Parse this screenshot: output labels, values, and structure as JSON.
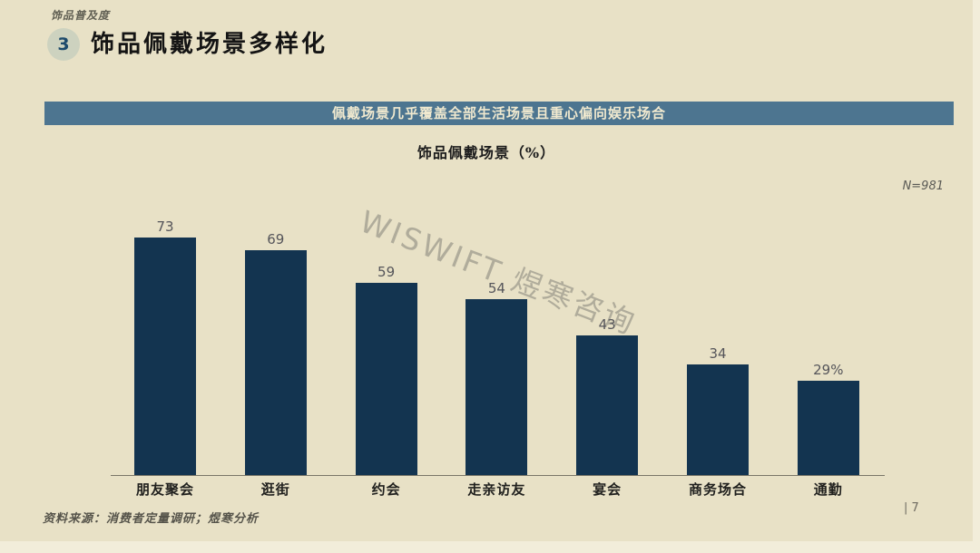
{
  "page": {
    "kicker": "饰品普及度",
    "slide_number": "3",
    "title": "饰品佩戴场景多样化",
    "banner": "佩戴场景几乎覆盖全部生活场景且重心偏向娱乐场合",
    "sample_note": "N=981",
    "watermark": "WISWIFT 煜寒咨询",
    "source": "资料来源：消费者定量调研；煜寒分析",
    "page_number": "| 7"
  },
  "chart_data": {
    "type": "bar",
    "title": "饰品佩戴场景（%）",
    "categories": [
      "朋友聚会",
      "逛街",
      "约会",
      "走亲访友",
      "宴会",
      "商务场合",
      "通勤"
    ],
    "values": [
      73,
      69,
      59,
      54,
      43,
      34,
      29
    ],
    "value_labels": [
      "73",
      "69",
      "59",
      "54",
      "43",
      "34",
      "29%"
    ],
    "xlabel": "",
    "ylabel": "",
    "ylim": [
      0,
      80
    ],
    "grid": false,
    "legend": "none",
    "bar_color": "#133450",
    "unit": "%"
  },
  "colors": {
    "slide_background": "#e8e1c6",
    "canvas_background": "#f2edda",
    "bar": "#133450",
    "banner_background": "#4d7590",
    "banner_text": "#f0e9cf",
    "badge_circle": "#cdd2bf",
    "badge_number": "#1d4a6b",
    "axis_line": "#7a7668"
  }
}
